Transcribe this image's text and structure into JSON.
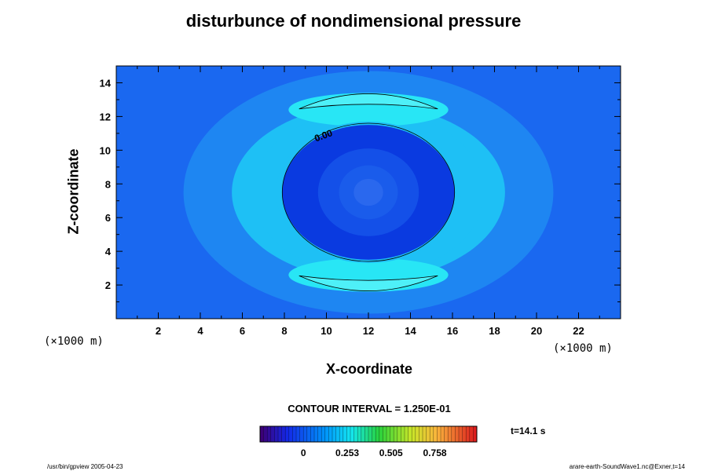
{
  "chart_data": {
    "type": "heatmap",
    "title": "disturbunce of nondimensional pressure",
    "xlabel": "X-coordinate",
    "ylabel": "Z-coordinate",
    "x_unit": "(×1000 m)",
    "y_unit": "(×1000 m)",
    "xlim": [
      0,
      24
    ],
    "ylim": [
      0,
      15
    ],
    "x_ticks": [
      2,
      4,
      6,
      8,
      10,
      12,
      14,
      16,
      18,
      20,
      22
    ],
    "y_ticks": [
      2,
      4,
      6,
      8,
      10,
      12,
      14
    ],
    "center": [
      12,
      7.5
    ],
    "field_levels": [
      {
        "region": "background",
        "color": "#1a68f0"
      },
      {
        "region": "outer-halo",
        "color": "#1e86f2"
      },
      {
        "region": "ring",
        "color": "#1ec0f5"
      },
      {
        "region": "ring-peak",
        "color": "#28e6f5"
      },
      {
        "region": "ring-core",
        "color": "#4ef0f8"
      },
      {
        "region": "inner-low",
        "color": "#0a3ae0"
      },
      {
        "region": "inner-mid",
        "color": "#1450e8"
      },
      {
        "region": "inner-center",
        "color": "#2a68ee"
      }
    ],
    "contour_lines": [
      {
        "level": 0.0,
        "label": "0.00"
      }
    ],
    "contour_interval": "CONTOUR INTERVAL = 1.250E-01",
    "colorbar": {
      "min": -0.25,
      "max": 1.0,
      "ticks": [
        {
          "value": 0,
          "label": "0"
        },
        {
          "value": 0.253,
          "label": "0.253"
        },
        {
          "value": 0.505,
          "label": "0.505"
        },
        {
          "value": 0.758,
          "label": "0.758"
        }
      ]
    },
    "time_label": "t=14.1 s"
  },
  "footer": {
    "left": "/usr/bin/gpview 2005-04-23",
    "right": "arare-earth-SoundWave1.nc@Exner,t=14"
  }
}
